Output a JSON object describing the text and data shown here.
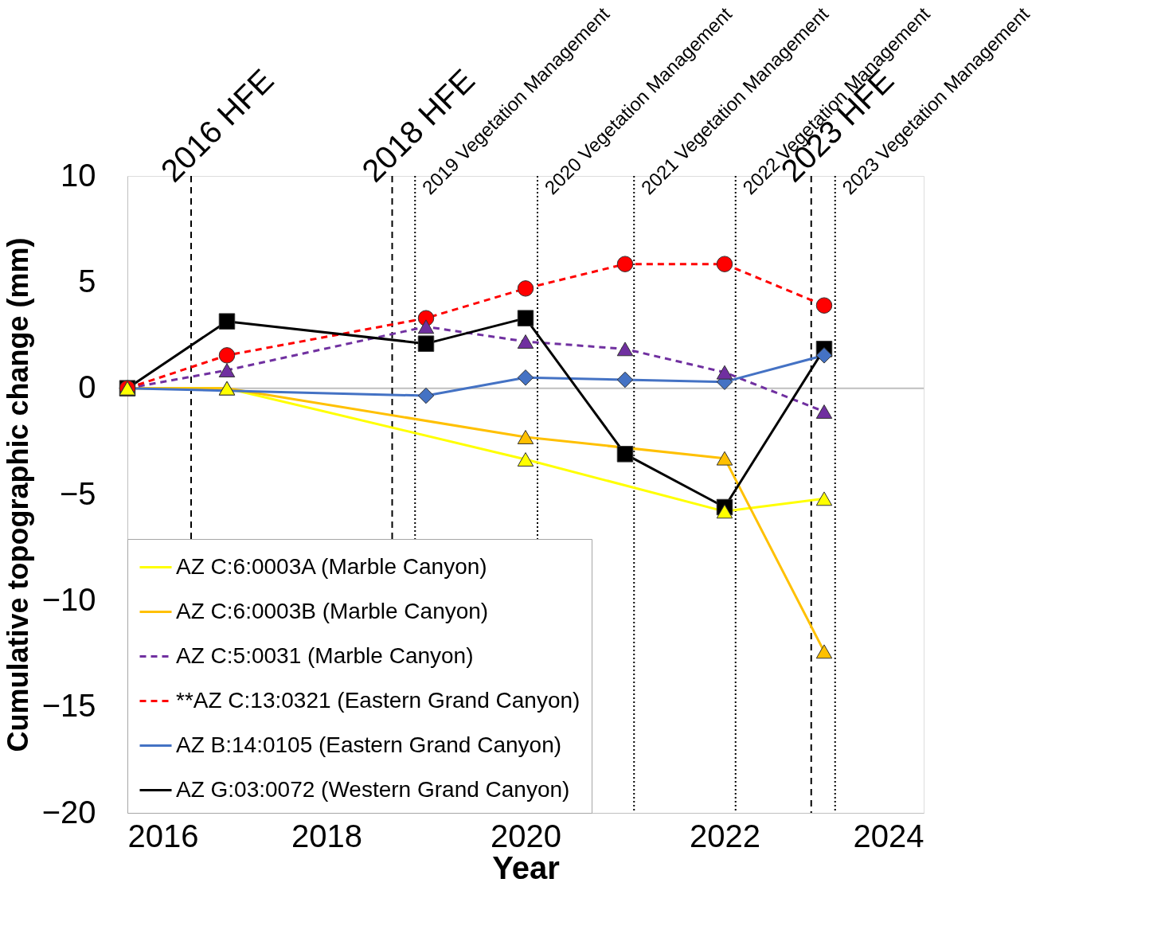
{
  "chart_data": {
    "type": "line",
    "xlabel": "Year",
    "ylabel": "Cumulative topographic change (mm)",
    "xlim": [
      2016,
      2024
    ],
    "xticks": [
      2016,
      2018,
      2020,
      2022,
      2024
    ],
    "ylim": [
      -20,
      10
    ],
    "yticks": [
      -20,
      -15,
      -10,
      -5,
      0,
      5,
      10
    ],
    "grid": false,
    "legend": "bottom left",
    "series": [
      {
        "name": "AZ C:6:0003A  (Marble Canyon)",
        "color": "#ffff00",
        "marker": "triangle",
        "line_style": "solid",
        "x": [
          2016,
          2017,
          2020,
          2022,
          2023
        ],
        "values": [
          0,
          0,
          -3.35,
          -5.8,
          -5.2
        ]
      },
      {
        "name": "AZ C:6:0003B (Marble Canyon)",
        "color": "#ffc000",
        "marker": "triangle",
        "line_style": "solid",
        "x": [
          2016,
          2017,
          2020,
          2022,
          2023
        ],
        "values": [
          0,
          0,
          -2.3,
          -3.3,
          -12.4
        ]
      },
      {
        "name": "AZ C:5:0031 (Marble Canyon)",
        "color": "#7030a0",
        "marker": "triangle",
        "line_style": "dashed",
        "x": [
          2016,
          2017,
          2019,
          2020,
          2021,
          2022,
          2023
        ],
        "values": [
          0,
          0.85,
          2.9,
          2.2,
          1.85,
          0.75,
          -1.1
        ]
      },
      {
        "name": "**AZ C:13:0321 (Eastern Grand Canyon)",
        "color": "#ff0000",
        "marker": "circle",
        "line_style": "dashed",
        "x": [
          2016,
          2017,
          2019,
          2020,
          2021,
          2022,
          2023
        ],
        "values": [
          0,
          1.55,
          3.3,
          4.7,
          5.85,
          5.85,
          3.9
        ]
      },
      {
        "name": "AZ B:14:0105  (Eastern Grand Canyon)",
        "color": "#4472c4",
        "marker": "diamond",
        "line_style": "solid",
        "x": [
          2016,
          2019,
          2020,
          2021,
          2022,
          2023
        ],
        "values": [
          0,
          -0.35,
          0.5,
          0.4,
          0.3,
          1.55
        ]
      },
      {
        "name": "AZ G:03:0072  (Western Grand Canyon)",
        "color": "#000000",
        "marker": "square",
        "line_style": "solid",
        "x": [
          2016,
          2017,
          2019,
          2020,
          2021,
          2022,
          2023
        ],
        "values": [
          0,
          3.15,
          2.1,
          3.3,
          -3.1,
          -5.6,
          1.85
        ]
      }
    ],
    "ref_lines": [
      {
        "axis": "y",
        "value": 0,
        "color": "#bfbfbf",
        "line_style": "solid"
      },
      {
        "axis": "x",
        "value": 2016.64,
        "label": "2016 HFE",
        "color": "#000000",
        "line_style": "dashed"
      },
      {
        "axis": "x",
        "value": 2018.66,
        "label": "2018 HFE",
        "color": "#000000",
        "line_style": "dashed"
      },
      {
        "axis": "x",
        "value": 2022.87,
        "label": "2023 HFE",
        "color": "#000000",
        "line_style": "dashed"
      },
      {
        "axis": "x",
        "value": 2018.89,
        "label": "2019 Vegetation Management",
        "color": "#000000",
        "line_style": "dotted"
      },
      {
        "axis": "x",
        "value": 2020.12,
        "label": "2020 Vegetation Management",
        "color": "#000000",
        "line_style": "dotted"
      },
      {
        "axis": "x",
        "value": 2021.09,
        "label": "2021 Vegetation Management",
        "color": "#000000",
        "line_style": "dotted"
      },
      {
        "axis": "x",
        "value": 2022.11,
        "label": "2022 Vegetation Management",
        "color": "#000000",
        "line_style": "dotted"
      },
      {
        "axis": "x",
        "value": 2023.11,
        "label": "2023 Vegetation Management",
        "color": "#000000",
        "line_style": "dotted"
      }
    ]
  }
}
